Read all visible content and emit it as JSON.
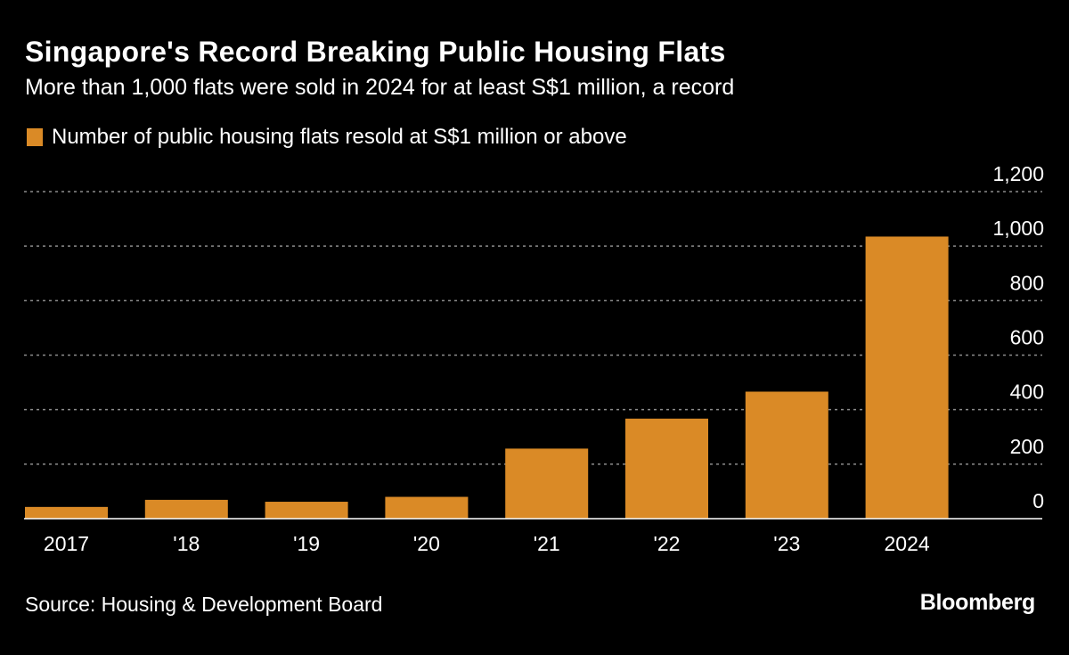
{
  "header": {
    "title": "Singapore's Record Breaking Public Housing Flats",
    "subtitle": "More than 1,000 flats were sold in 2024 for at least S$1 million, a record"
  },
  "footer": {
    "source": "Source: Housing & Development Board",
    "brand": "Bloomberg"
  },
  "colors": {
    "bar": "#DA8A26",
    "background": "#000000",
    "grid": "#8c8c8c",
    "axis": "#ffffff",
    "text": "#ffffff"
  },
  "chart_data": {
    "type": "bar",
    "title": "Singapore's Record Breaking Public Housing Flats",
    "subtitle": "More than 1,000 flats were sold in 2024 for at least S$1 million, a record",
    "categories": [
      "2017",
      "'18",
      "'19",
      "'20",
      "'21",
      "'22",
      "'23",
      "2024"
    ],
    "series": [
      {
        "name": "Number of public housing flats resold at S$1 million or above",
        "values": [
          43,
          69,
          62,
          80,
          257,
          367,
          466,
          1035
        ]
      }
    ],
    "xlabel": "",
    "ylabel": "",
    "ylim": [
      0,
      1200
    ],
    "yticks": [
      0,
      200,
      400,
      600,
      800,
      1000,
      1200
    ],
    "ytick_labels": [
      "0",
      "200",
      "400",
      "600",
      "800",
      "1,000",
      "1,200"
    ],
    "y_axis_side": "right",
    "grid": true,
    "grid_style": "dotted",
    "legend_position": "top-left"
  }
}
